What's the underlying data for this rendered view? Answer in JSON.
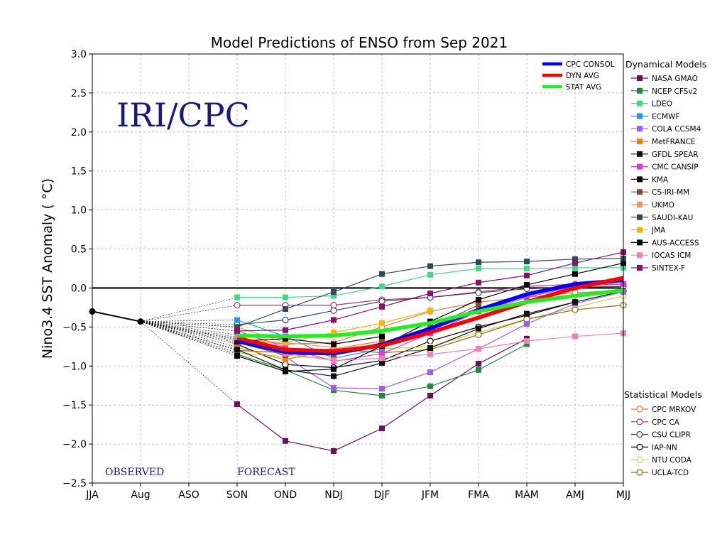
{
  "chart_data": {
    "type": "line",
    "title": "Model Predictions of ENSO from Sep 2021",
    "ylabel": "Nino3.4 SST Anomaly ( °C)",
    "xlabel": "",
    "categories": [
      "JJA",
      "Aug",
      "ASO",
      "SON",
      "OND",
      "NDJ",
      "DJF",
      "JFM",
      "FMA",
      "MAM",
      "AMJ",
      "MJJ"
    ],
    "ylim": [
      -2.5,
      3.0
    ],
    "yticks": [
      "3.0",
      "2.5",
      "2.0",
      "1.5",
      "1.0",
      "0.5",
      "0.0",
      "−0.5",
      "−1.0",
      "−1.5",
      "−2.0",
      "−2.5"
    ],
    "yticks_values": [
      3.0,
      2.5,
      2.0,
      1.5,
      1.0,
      0.5,
      0.0,
      -0.5,
      -1.0,
      -1.5,
      -2.0,
      -2.5
    ],
    "grid": true,
    "watermark": "IRI/CPC",
    "observed_label": "OBSERVED",
    "forecast_label": "FORECAST",
    "observed": {
      "x": [
        0,
        1
      ],
      "values": [
        -0.3,
        -0.43
      ],
      "color": "#000000"
    },
    "dynamical_title": "Dynamical Models",
    "statistical_title": "Statistical Models",
    "dynamical": [
      {
        "name": "NASA GMAO",
        "color": "#6b0f5a",
        "values": [
          -1.49,
          -1.96,
          -2.09,
          -1.8,
          -1.38,
          -0.97,
          -0.65,
          null,
          null
        ]
      },
      {
        "name": "NCEP CFSv2",
        "color": "#1e8a3a",
        "values": [
          -0.85,
          -1.05,
          -1.31,
          -1.38,
          -1.26,
          -1.05,
          -0.72,
          null,
          null
        ]
      },
      {
        "name": "LDEO",
        "color": "#3ddc84",
        "values": [
          -0.12,
          -0.12,
          -0.1,
          0.02,
          0.17,
          0.25,
          0.25,
          0.26,
          0.26
        ]
      },
      {
        "name": "ECMWF",
        "color": "#2196f3",
        "values": [
          -0.41,
          -0.62,
          -0.9,
          -0.78,
          null,
          null,
          null,
          null,
          null
        ]
      },
      {
        "name": "COLA CCSM4",
        "color": "#a35ce8",
        "values": [
          -0.6,
          -0.88,
          -1.28,
          -1.29,
          -1.08,
          -0.78,
          -0.46,
          -0.2,
          -0.05
        ]
      },
      {
        "name": "MetFRANCE",
        "color": "#f07c1e",
        "values": [
          -0.76,
          -0.92,
          -0.78,
          -0.68,
          null,
          null,
          null,
          null,
          null
        ]
      },
      {
        "name": "GFDL SPEAR",
        "color": "#111111",
        "values": [
          -0.79,
          -1.05,
          -1.13,
          -0.96,
          -0.77,
          -0.52,
          -0.33,
          -0.18,
          null
        ]
      },
      {
        "name": "CMC CANSIP",
        "color": "#d63ad6",
        "values": [
          -0.55,
          -0.76,
          -0.94,
          -0.84,
          -0.58,
          -0.3,
          -0.12,
          0.02,
          0.05
        ]
      },
      {
        "name": "KMA",
        "color": "#000000",
        "values": [
          -0.87,
          -1.07,
          -1.04,
          -0.74,
          -0.43,
          -0.15,
          0.04,
          0.18,
          0.32
        ]
      },
      {
        "name": "CS-IRI-MM",
        "color": "#8b4a2b",
        "values": [
          -0.7,
          -0.86,
          -0.85,
          -0.7,
          -0.5,
          -0.22,
          null,
          null,
          null
        ]
      },
      {
        "name": "UKMO",
        "color": "#f5935a",
        "values": [
          -0.5,
          -0.7,
          -0.76,
          null,
          null,
          null,
          null,
          null,
          null
        ]
      },
      {
        "name": "SAUDI-KAU",
        "color": "#2f4a55",
        "values": [
          -0.5,
          -0.27,
          -0.05,
          0.18,
          0.28,
          0.33,
          0.34,
          0.37,
          0.38
        ]
      },
      {
        "name": "JMA",
        "color": "#f7b500",
        "values": [
          -0.66,
          -0.7,
          -0.57,
          -0.45,
          -0.29,
          null,
          null,
          null,
          null
        ]
      },
      {
        "name": "AUS-ACCESS",
        "color": "#000000",
        "values": [
          -0.68,
          -0.65,
          -0.72,
          -0.62,
          null,
          null,
          null,
          null,
          null
        ]
      },
      {
        "name": "IOCAS ICM",
        "color": "#f27fb8",
        "values": [
          -0.63,
          -0.84,
          -0.93,
          -0.9,
          -0.85,
          -0.78,
          -0.68,
          -0.62,
          -0.58
        ]
      },
      {
        "name": "SINTEX-F",
        "color": "#8b0f6b",
        "values": [
          -0.55,
          -0.54,
          -0.41,
          -0.24,
          -0.07,
          0.07,
          0.16,
          0.32,
          0.46
        ]
      }
    ],
    "statistical": [
      {
        "name": "CPC MRKOV",
        "color": "#e07b39",
        "values": [
          -0.65,
          -0.72,
          -0.7,
          -0.5,
          -0.3,
          -0.18,
          -0.12,
          -0.06,
          -0.03
        ]
      },
      {
        "name": "CPC CA",
        "color": "#b03070",
        "values": [
          -0.22,
          -0.22,
          -0.22,
          -0.15,
          -0.12,
          -0.05,
          0.02,
          0.05,
          0.05
        ]
      },
      {
        "name": "CSU CLIPR",
        "color": "#2f4a55",
        "values": [
          -0.47,
          -0.41,
          -0.29,
          -0.17,
          -0.12,
          -0.06,
          -0.01,
          0.01,
          0.02
        ]
      },
      {
        "name": "IAP-NN",
        "color": "#000000",
        "values": [
          -0.72,
          -0.98,
          -1.02,
          -0.93,
          -0.68,
          -0.5,
          -0.35,
          -0.18,
          -0.04
        ]
      },
      {
        "name": "NTU CODA",
        "color": "#aede3a",
        "values": [
          -0.83,
          -0.88,
          -0.9,
          -0.78,
          -0.75,
          -0.57,
          -0.4,
          -0.25,
          -0.1
        ]
      },
      {
        "name": "UCLA-TCD",
        "color": "#8b6914",
        "values": [
          -0.8,
          -0.83,
          -0.78,
          -0.83,
          -0.79,
          -0.6,
          -0.4,
          -0.28,
          -0.22
        ]
      }
    ],
    "averages": [
      {
        "name": "CPC CONSOL",
        "color": "#0000ff",
        "values": [
          -0.68,
          -0.82,
          -0.84,
          -0.73,
          -0.52,
          -0.28,
          -0.08,
          0.05,
          0.1
        ]
      },
      {
        "name": "DYN AVG",
        "color": "#ff0000",
        "values": [
          -0.64,
          -0.79,
          -0.81,
          -0.74,
          -0.57,
          -0.38,
          -0.18,
          0.0,
          0.13
        ]
      },
      {
        "name": "STAT AVG",
        "color": "#22ee22",
        "values": [
          -0.61,
          -0.62,
          -0.61,
          -0.55,
          -0.45,
          -0.3,
          -0.18,
          -0.1,
          -0.03
        ]
      }
    ]
  }
}
